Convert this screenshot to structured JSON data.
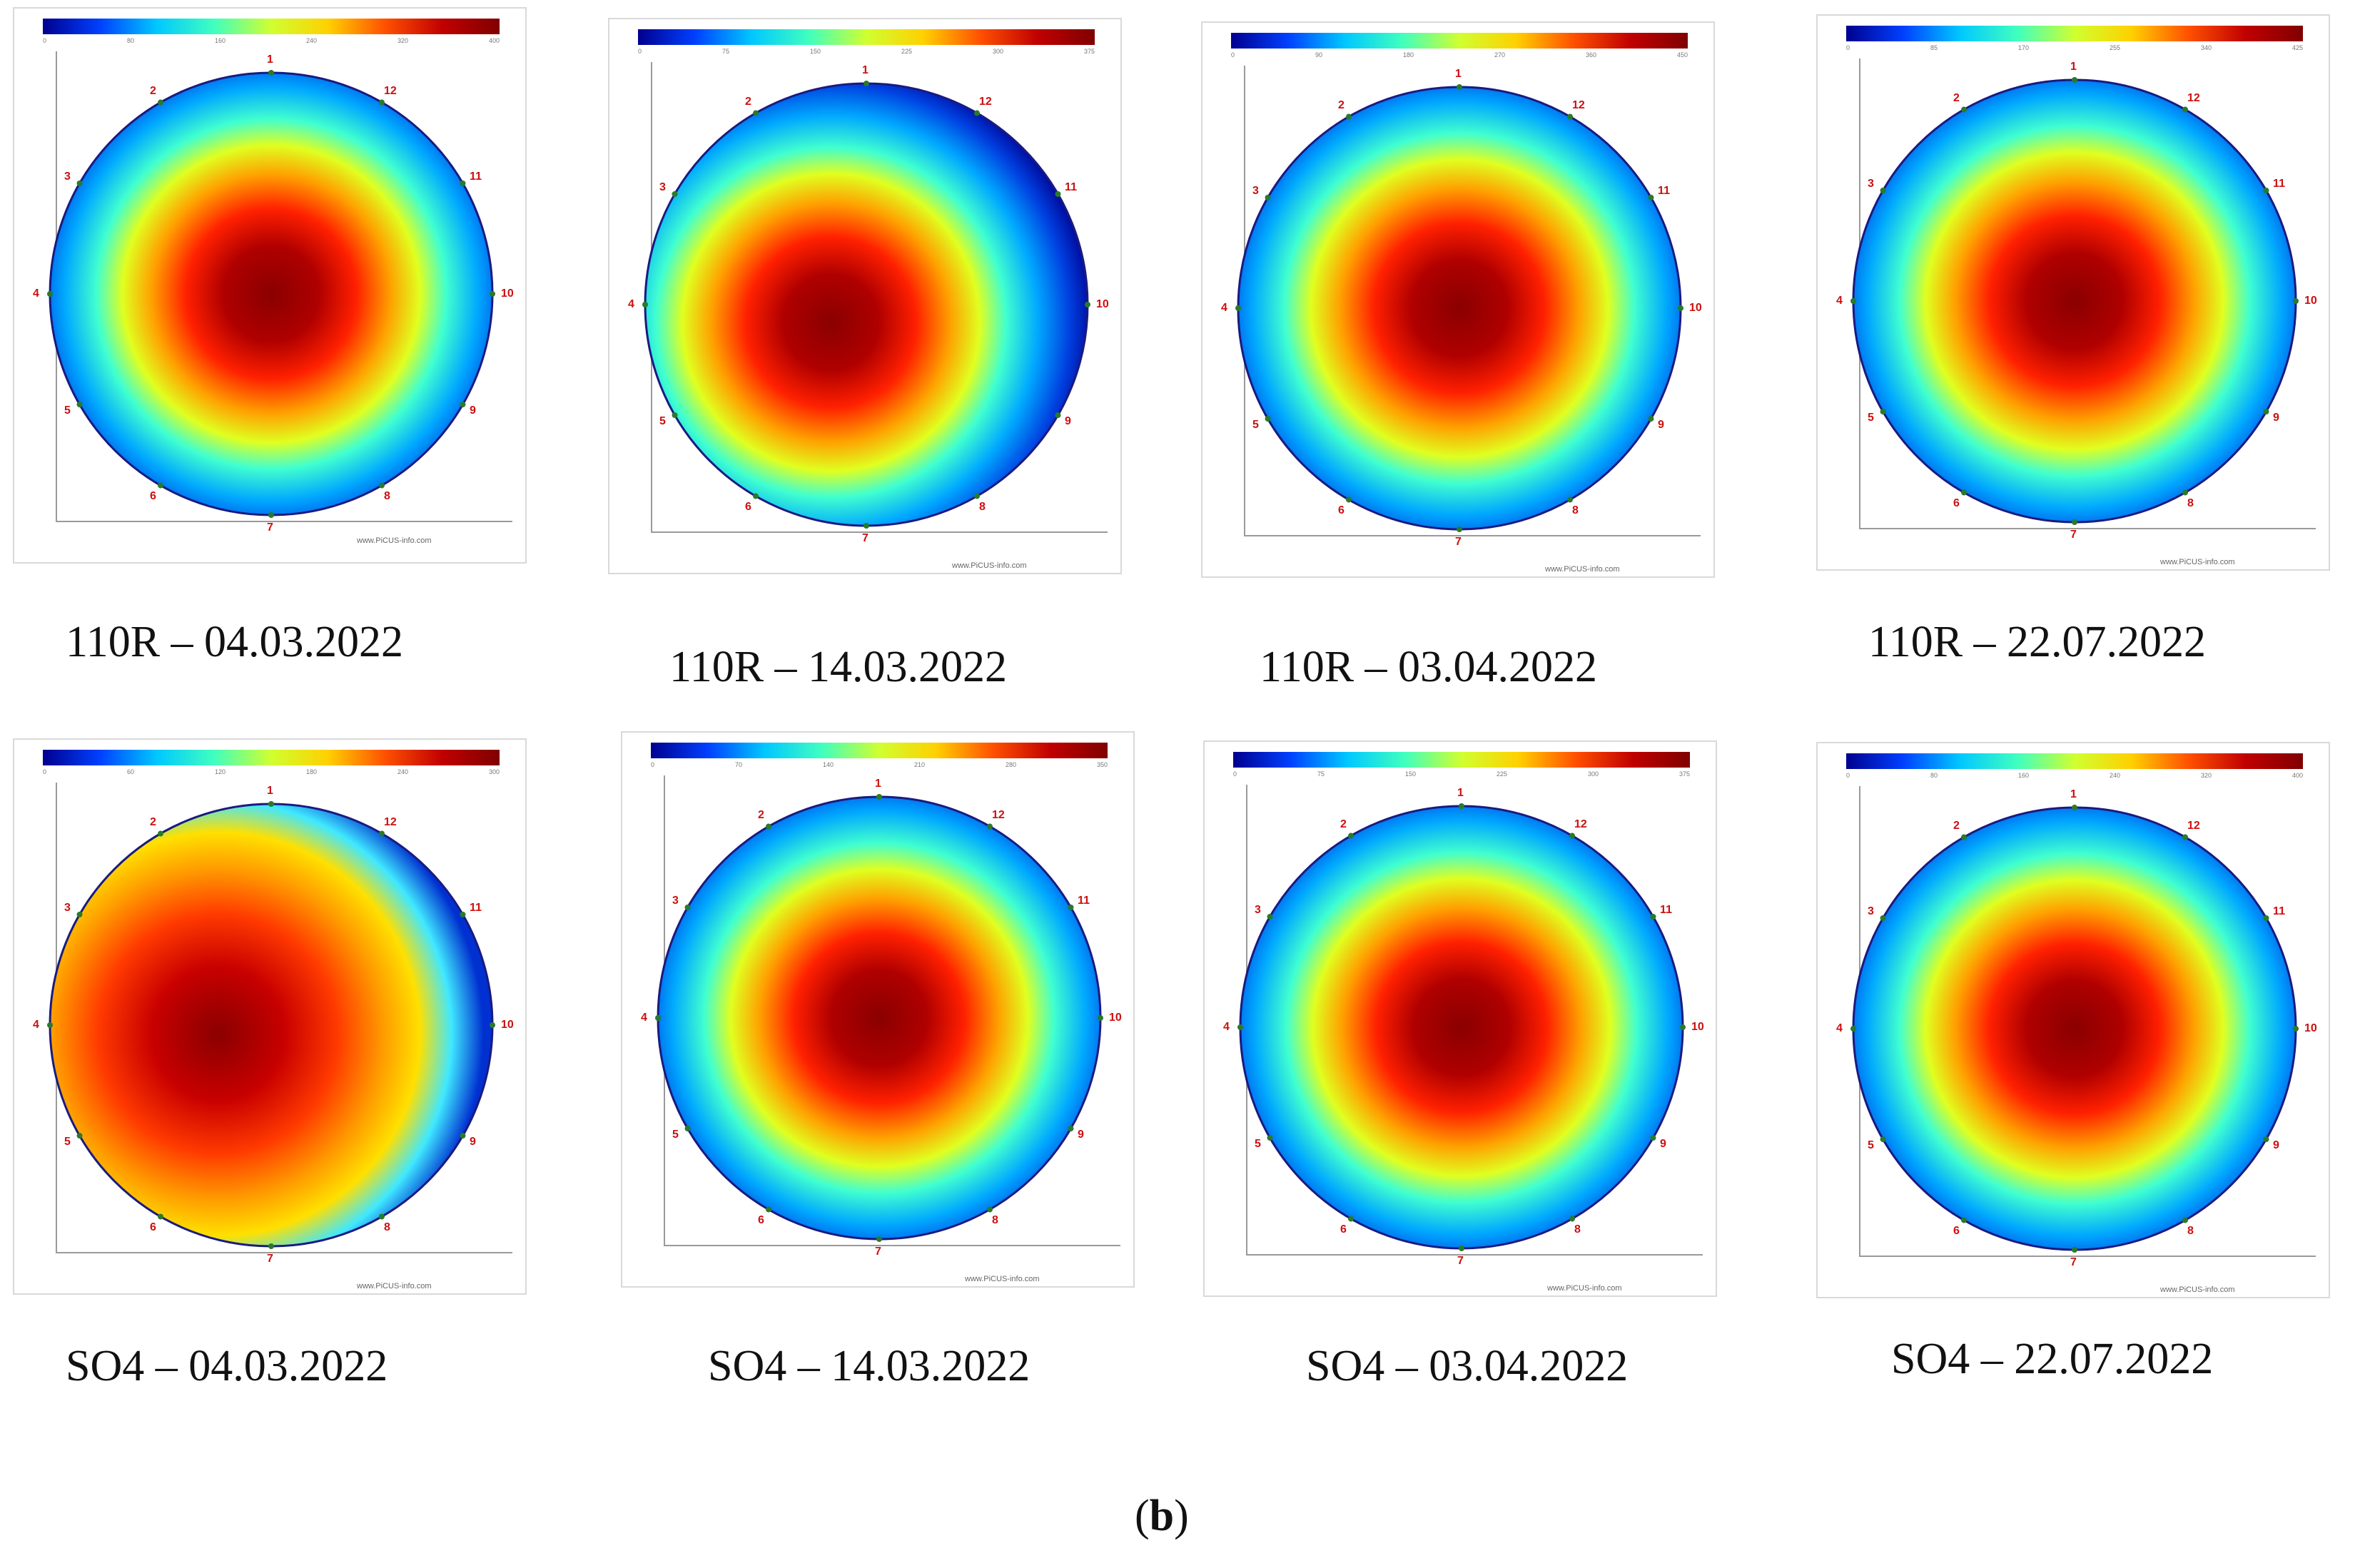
{
  "panels": [
    {
      "caption": "110R – 04.03.2022",
      "pattern": "center-hot",
      "scale": [
        "0",
        "80",
        "160",
        "240",
        "320",
        "400"
      ]
    },
    {
      "caption": "110R – 14.03.2022",
      "pattern": "center-left",
      "scale": [
        "0",
        "75",
        "150",
        "225",
        "300",
        "375"
      ]
    },
    {
      "caption": "110R – 03.04.2022",
      "pattern": "center-hot",
      "scale": [
        "0",
        "90",
        "180",
        "270",
        "360",
        "450"
      ]
    },
    {
      "caption": "110R – 22.07.2022",
      "pattern": "center-hot",
      "scale": [
        "0",
        "85",
        "170",
        "255",
        "340",
        "425"
      ]
    },
    {
      "caption": "SO4 – 04.03.2022",
      "pattern": "wide-left",
      "scale": [
        "0",
        "60",
        "120",
        "180",
        "240",
        "300"
      ]
    },
    {
      "caption": "SO4 – 14.03.2022",
      "pattern": "center-hot",
      "scale": [
        "0",
        "70",
        "140",
        "210",
        "280",
        "350"
      ]
    },
    {
      "caption": "SO4 – 03.04.2022",
      "pattern": "center-hot",
      "scale": [
        "0",
        "75",
        "150",
        "225",
        "300",
        "375"
      ]
    },
    {
      "caption": "SO4 – 22.07.2022",
      "pattern": "center-hot",
      "scale": [
        "0",
        "80",
        "160",
        "240",
        "320",
        "400"
      ]
    }
  ],
  "measurement_points": [
    "1",
    "2",
    "3",
    "4",
    "5",
    "6",
    "7",
    "8",
    "9",
    "10",
    "11",
    "12"
  ],
  "site_label": "www.PiCUS-info.com",
  "subfigure_label": "b",
  "colors": {
    "cold": "#00008f",
    "mid": "#00c8ff",
    "warm": "#ffd000",
    "hot": "#800000"
  }
}
